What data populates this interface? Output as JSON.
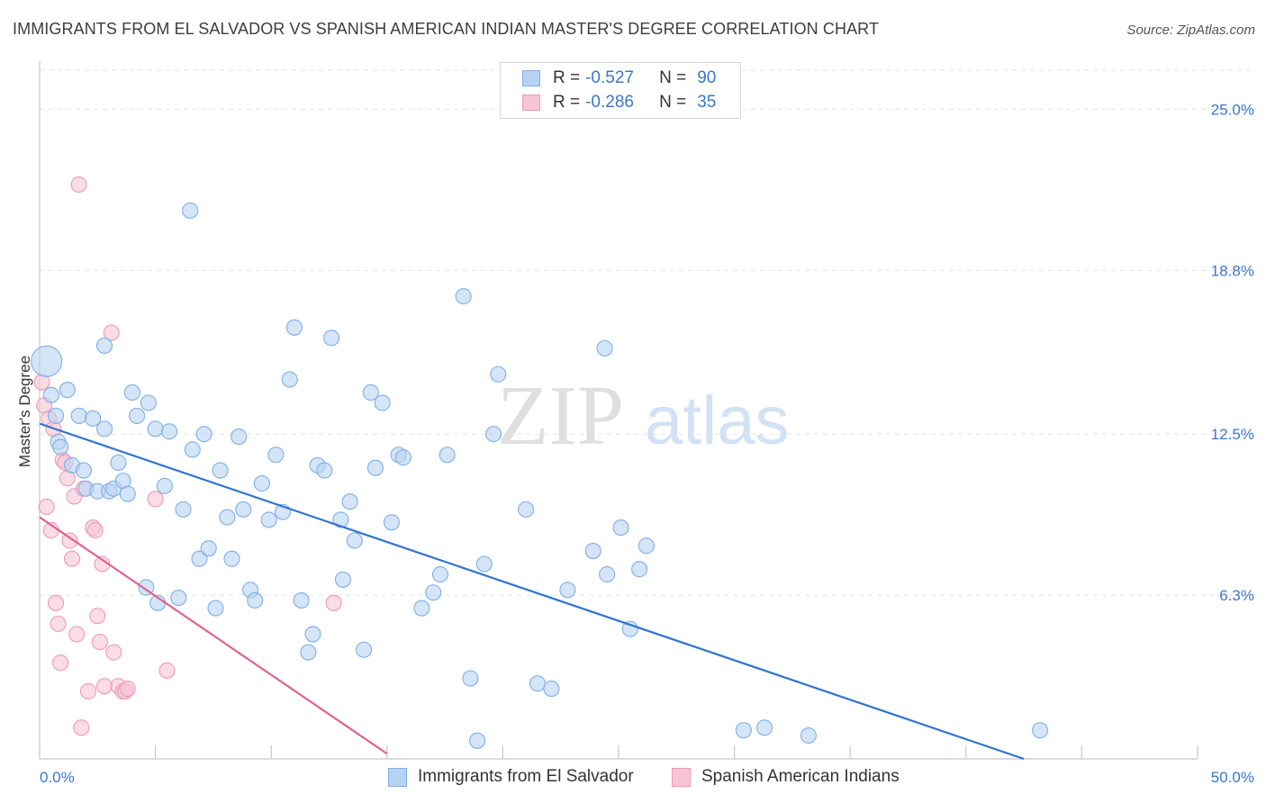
{
  "header": {
    "title": "IMMIGRANTS FROM EL SALVADOR VS SPANISH AMERICAN INDIAN MASTER'S DEGREE CORRELATION CHART",
    "source": "Source: ZipAtlas.com"
  },
  "watermark": {
    "part1": "ZIP",
    "part2": "atlas"
  },
  "legend": {
    "rows": [
      {
        "r_label": "R =",
        "r_value": "-0.527",
        "n_label": "N =",
        "n_value": "90"
      },
      {
        "r_label": "R =",
        "r_value": "-0.286",
        "n_label": "N =",
        "n_value": "35"
      }
    ]
  },
  "bottom_legend": {
    "items": [
      "Immigrants from El Salvador",
      "Spanish American Indians"
    ]
  },
  "chart_data": {
    "type": "scatter",
    "title": "IMMIGRANTS FROM EL SALVADOR VS SPANISH AMERICAN INDIAN MASTER'S DEGREE CORRELATION CHART",
    "xlabel": "",
    "ylabel": "Master's Degree",
    "xlim": [
      0,
      50
    ],
    "ylim": [
      0,
      26.5
    ],
    "x_tick_labels": [
      "0.0%",
      "50.0%"
    ],
    "y_ticks": [
      6.3,
      12.5,
      18.8,
      25.0
    ],
    "y_tick_labels": [
      "6.3%",
      "12.5%",
      "18.8%",
      "25.0%"
    ],
    "grid": true,
    "legend_position": "top-center",
    "colors": {
      "blue_fill": "#b8d3f2",
      "blue_stroke": "#7faee6",
      "blue_line": "#2f74d0",
      "pink_fill": "#f7c5d4",
      "pink_stroke": "#ee9ab5",
      "pink_line": "#e0628f",
      "tick_label": "#3a78c8",
      "grid": "#e2e2e2",
      "axis": "#c8c8c8"
    },
    "series": [
      {
        "name": "Immigrants from El Salvador",
        "color": "#b8d3f2",
        "points": [
          [
            0.3,
            15.3
          ],
          [
            0.5,
            14.0
          ],
          [
            0.7,
            13.2
          ],
          [
            0.8,
            12.2
          ],
          [
            0.9,
            12.0
          ],
          [
            1.2,
            14.2
          ],
          [
            1.4,
            11.3
          ],
          [
            1.7,
            13.2
          ],
          [
            1.9,
            11.1
          ],
          [
            2.0,
            10.4
          ],
          [
            2.3,
            13.1
          ],
          [
            2.5,
            10.3
          ],
          [
            2.8,
            12.7
          ],
          [
            3.0,
            10.3
          ],
          [
            3.2,
            10.4
          ],
          [
            3.4,
            11.4
          ],
          [
            3.6,
            10.7
          ],
          [
            3.8,
            10.2
          ],
          [
            4.0,
            14.1
          ],
          [
            4.2,
            13.2
          ],
          [
            4.7,
            13.7
          ],
          [
            5.0,
            12.7
          ],
          [
            5.4,
            10.5
          ],
          [
            2.8,
            15.9
          ],
          [
            4.6,
            6.6
          ],
          [
            5.1,
            6.0
          ],
          [
            5.6,
            12.6
          ],
          [
            6.0,
            6.2
          ],
          [
            6.2,
            9.6
          ],
          [
            6.5,
            21.1
          ],
          [
            6.6,
            11.9
          ],
          [
            6.9,
            7.7
          ],
          [
            7.1,
            12.5
          ],
          [
            7.3,
            8.1
          ],
          [
            7.6,
            5.8
          ],
          [
            7.8,
            11.1
          ],
          [
            8.1,
            9.3
          ],
          [
            8.3,
            7.7
          ],
          [
            8.6,
            12.4
          ],
          [
            8.8,
            9.6
          ],
          [
            9.1,
            6.5
          ],
          [
            9.3,
            6.1
          ],
          [
            9.6,
            10.6
          ],
          [
            9.9,
            9.2
          ],
          [
            10.2,
            11.7
          ],
          [
            10.5,
            9.5
          ],
          [
            10.8,
            14.6
          ],
          [
            11.0,
            16.6
          ],
          [
            11.3,
            6.1
          ],
          [
            11.6,
            4.1
          ],
          [
            11.8,
            4.8
          ],
          [
            12.0,
            11.3
          ],
          [
            12.3,
            11.1
          ],
          [
            12.6,
            16.2
          ],
          [
            13.0,
            9.2
          ],
          [
            13.1,
            6.9
          ],
          [
            13.4,
            9.9
          ],
          [
            13.6,
            8.4
          ],
          [
            14.0,
            4.2
          ],
          [
            14.3,
            14.1
          ],
          [
            14.5,
            11.2
          ],
          [
            14.8,
            13.7
          ],
          [
            15.2,
            9.1
          ],
          [
            15.5,
            11.7
          ],
          [
            15.7,
            11.6
          ],
          [
            16.5,
            5.8
          ],
          [
            17.0,
            6.4
          ],
          [
            17.3,
            7.1
          ],
          [
            17.6,
            11.7
          ],
          [
            18.3,
            17.8
          ],
          [
            18.6,
            3.1
          ],
          [
            18.9,
            0.7
          ],
          [
            19.2,
            7.5
          ],
          [
            19.6,
            12.5
          ],
          [
            19.8,
            14.8
          ],
          [
            21.0,
            9.6
          ],
          [
            21.5,
            2.9
          ],
          [
            22.1,
            2.7
          ],
          [
            22.8,
            6.5
          ],
          [
            23.9,
            8.0
          ],
          [
            24.4,
            15.8
          ],
          [
            24.5,
            7.1
          ],
          [
            25.1,
            8.9
          ],
          [
            25.5,
            5.0
          ],
          [
            25.9,
            7.3
          ],
          [
            26.2,
            8.2
          ],
          [
            30.4,
            1.1
          ],
          [
            31.3,
            1.2
          ],
          [
            33.2,
            0.9
          ],
          [
            43.2,
            1.1
          ]
        ],
        "trend": {
          "x": [
            0.0,
            42.5
          ],
          "y": [
            12.9,
            0.0
          ]
        }
      },
      {
        "name": "Spanish American Indians",
        "color": "#f7c5d4",
        "points": [
          [
            0.1,
            14.5
          ],
          [
            0.2,
            13.6
          ],
          [
            0.3,
            9.7
          ],
          [
            0.4,
            13.1
          ],
          [
            0.5,
            8.8
          ],
          [
            0.6,
            12.7
          ],
          [
            0.7,
            6.0
          ],
          [
            0.8,
            5.2
          ],
          [
            0.9,
            3.7
          ],
          [
            1.0,
            11.5
          ],
          [
            1.1,
            11.4
          ],
          [
            1.2,
            10.8
          ],
          [
            1.3,
            8.4
          ],
          [
            1.4,
            7.7
          ],
          [
            1.5,
            10.1
          ],
          [
            1.6,
            4.8
          ],
          [
            1.7,
            22.1
          ],
          [
            1.8,
            1.2
          ],
          [
            1.9,
            10.4
          ],
          [
            2.1,
            2.6
          ],
          [
            2.3,
            8.9
          ],
          [
            2.4,
            8.8
          ],
          [
            2.5,
            5.5
          ],
          [
            2.6,
            4.5
          ],
          [
            2.7,
            7.5
          ],
          [
            2.8,
            2.8
          ],
          [
            3.1,
            16.4
          ],
          [
            3.2,
            4.1
          ],
          [
            3.4,
            2.8
          ],
          [
            3.6,
            2.6
          ],
          [
            3.7,
            2.6
          ],
          [
            3.8,
            2.7
          ],
          [
            5.0,
            10.0
          ],
          [
            5.5,
            3.4
          ],
          [
            12.7,
            6.0
          ]
        ],
        "trend": {
          "x": [
            0.0,
            15.0
          ],
          "y": [
            9.3,
            0.2
          ]
        }
      }
    ]
  }
}
